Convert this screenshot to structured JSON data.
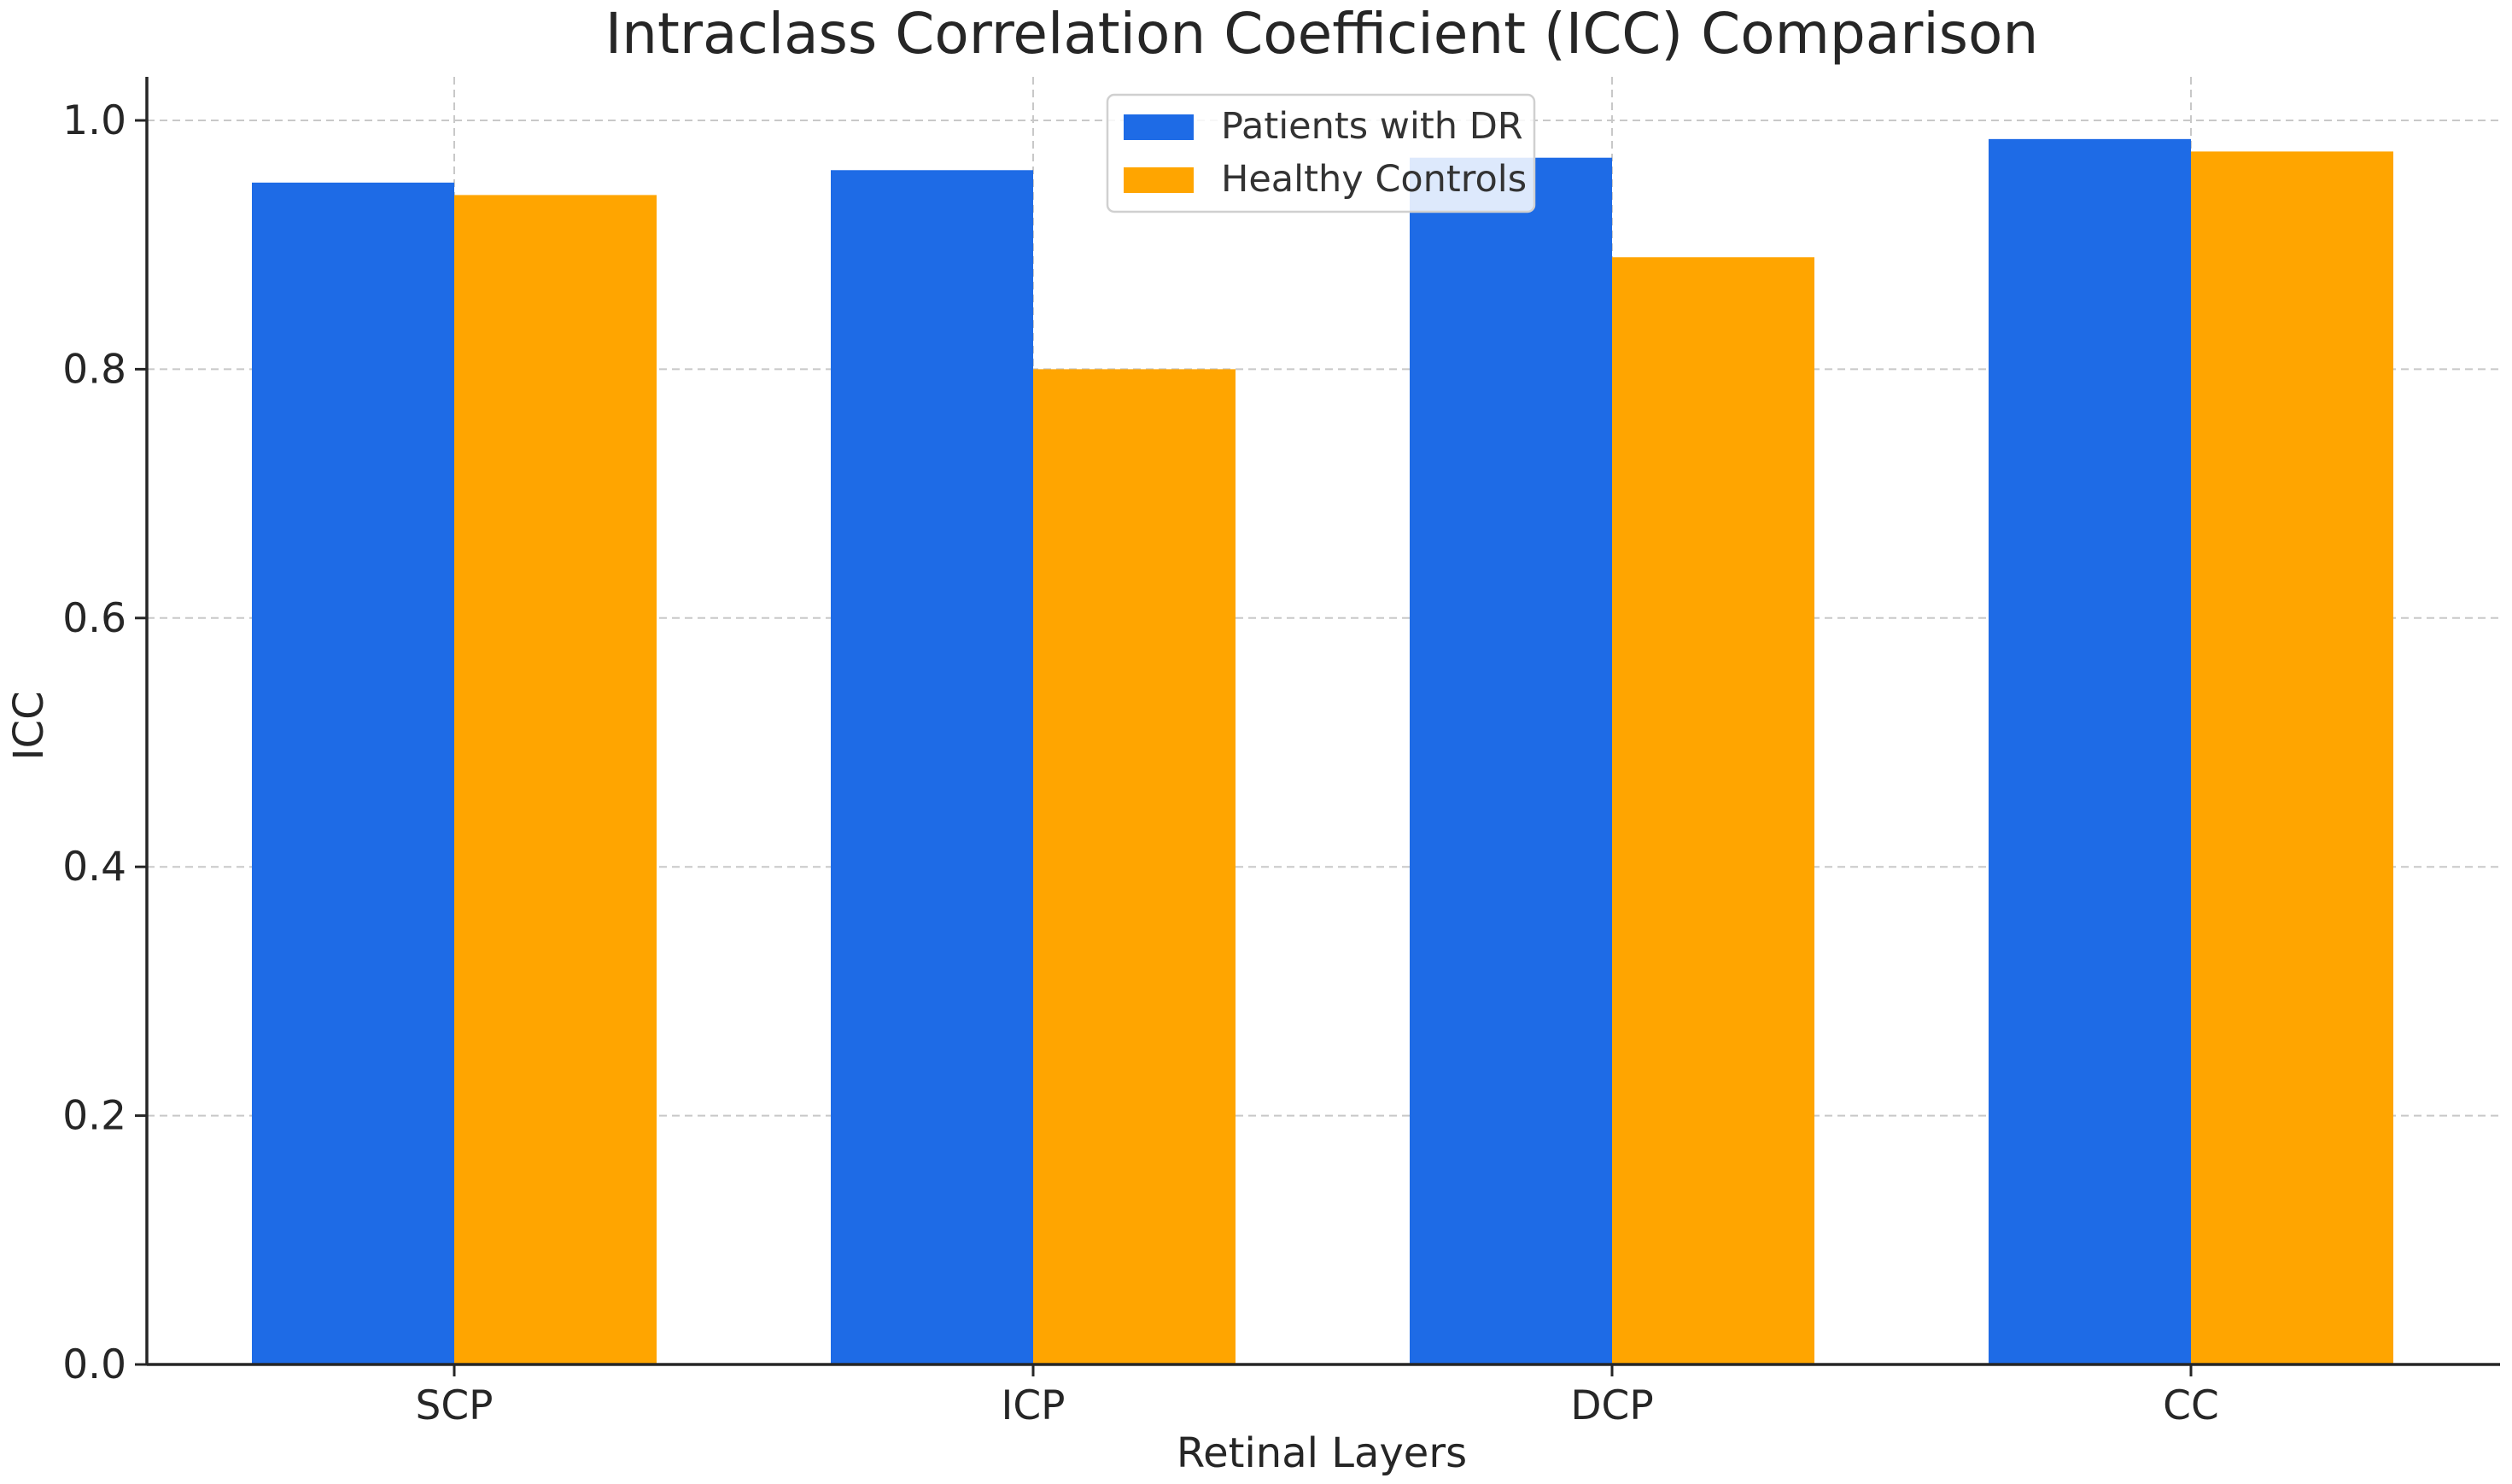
{
  "chart_data": {
    "type": "bar",
    "title": "Intraclass Correlation Coefficient (ICC) Comparison",
    "xlabel": "Retinal Layers",
    "ylabel": "ICC",
    "categories": [
      "SCP",
      "ICP",
      "DCP",
      "CC"
    ],
    "series": [
      {
        "name": "Patients with DR",
        "color": "#1e6be6",
        "values": [
          0.95,
          0.96,
          0.97,
          0.985
        ]
      },
      {
        "name": "Healthy Controls",
        "color": "#ffa500",
        "values": [
          0.94,
          0.8,
          0.89,
          0.975
        ]
      }
    ],
    "ylim": [
      0,
      1.035
    ],
    "yticks": [
      0.0,
      0.2,
      0.4,
      0.6,
      0.8,
      1.0
    ],
    "ytick_labels": [
      "0.0",
      "0.2",
      "0.4",
      "0.6",
      "0.8",
      "1.0"
    ],
    "grid": true,
    "legend": "top-center"
  }
}
